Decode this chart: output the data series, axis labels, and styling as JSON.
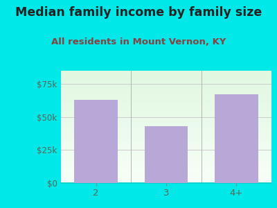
{
  "title": "Median family income by family size",
  "subtitle": "All residents in Mount Vernon, KY",
  "categories": [
    "2",
    "3",
    "4+"
  ],
  "values": [
    63000,
    43000,
    67000
  ],
  "bar_color": "#b8a8d8",
  "background_color": "#00e8e8",
  "plot_bg_top": "#e8f5e8",
  "plot_bg_bottom": "#f8fff8",
  "title_color": "#222222",
  "subtitle_color": "#8b4040",
  "tick_color": "#556655",
  "ylim": [
    0,
    85000
  ],
  "yticks": [
    0,
    25000,
    50000,
    75000
  ],
  "ytick_labels": [
    "$0",
    "$25k",
    "$50k",
    "$75k"
  ],
  "title_fontsize": 12.5,
  "subtitle_fontsize": 9.5,
  "tick_fontsize": 8.5
}
